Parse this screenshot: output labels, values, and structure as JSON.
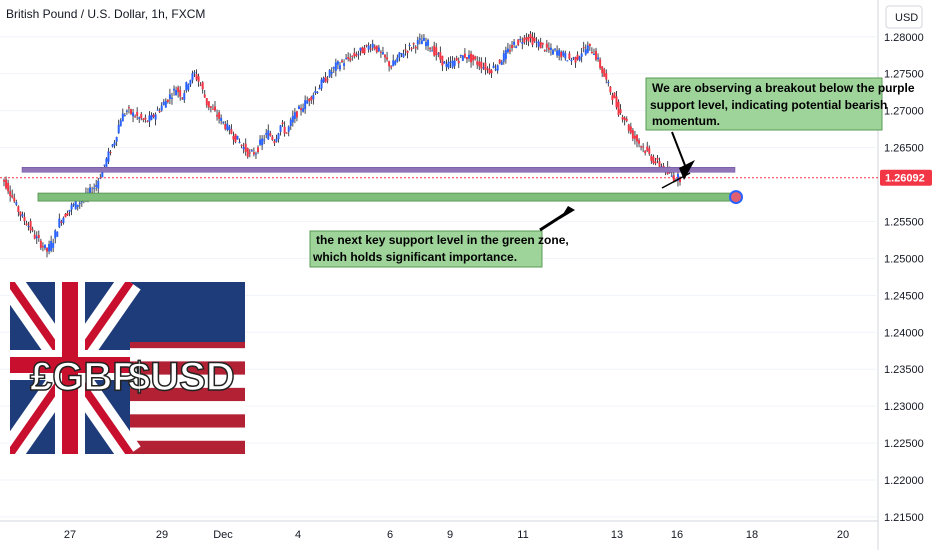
{
  "chart_data": {
    "type": "candlestick",
    "title": "British Pound / U.S. Dollar, 1h, FXCM",
    "currency": "USD",
    "ylim": [
      1.215,
      1.282
    ],
    "y_ticks": [
      "1.28000",
      "1.27500",
      "1.27000",
      "1.26500",
      "1.26092",
      "1.25500",
      "1.25000",
      "1.24500",
      "1.24000",
      "1.23500",
      "1.23000",
      "1.22500",
      "1.22000",
      "1.21500"
    ],
    "x_ticks": [
      "27",
      "29",
      "Dec",
      "4",
      "6",
      "9",
      "11",
      "13",
      "16",
      "18",
      "20"
    ],
    "last_price": {
      "label": "1.26092",
      "value": 1.26092,
      "color": "#f23645"
    },
    "series": [
      {
        "x_range": [
          0,
          1
        ],
        "y": [
          1.2605,
          1.259,
          1.257,
          1.2555,
          1.2545,
          1.253,
          1.252,
          1.251,
          1.2525,
          1.255,
          1.256,
          1.257,
          1.2575,
          1.258,
          1.259,
          1.26,
          1.262,
          1.264,
          1.266,
          1.269,
          1.27,
          1.2695,
          1.269,
          1.2685,
          1.269,
          1.27,
          1.271,
          1.272,
          1.273,
          1.272,
          1.274,
          1.275,
          1.2735,
          1.271,
          1.27,
          1.269,
          1.268,
          1.267,
          1.266,
          1.265,
          1.264,
          1.2645,
          1.266,
          1.267,
          1.266,
          1.268,
          1.267,
          1.269,
          1.27,
          1.271,
          1.272,
          1.273,
          1.274,
          1.275,
          1.276,
          1.2765,
          1.277,
          1.2775,
          1.278,
          1.2785,
          1.279,
          1.278,
          1.277,
          1.276,
          1.277,
          1.278,
          1.2785,
          1.279,
          1.2795,
          1.279,
          1.278,
          1.277,
          1.276,
          1.2765,
          1.277,
          1.2775,
          1.277,
          1.2765,
          1.276,
          1.2755,
          1.276,
          1.277,
          1.278,
          1.279,
          1.2795,
          1.28,
          1.2795,
          1.279,
          1.2785,
          1.278,
          1.278,
          1.2775,
          1.277,
          1.277,
          1.278,
          1.2785,
          1.278,
          1.276,
          1.274,
          1.272,
          1.27,
          1.269,
          1.267,
          1.266,
          1.265,
          1.264,
          1.263,
          1.2625,
          1.2615,
          1.261,
          1.2609
        ]
      }
    ],
    "levels": [
      {
        "name": "purple-support",
        "value": 1.262,
        "color": "#8f74b8"
      },
      {
        "name": "green-support",
        "value": 1.2583,
        "color": "#7fbf7b"
      }
    ],
    "annotations": [
      {
        "text": [
          "We are observing a breakout below the purple",
          "support level, indicating potential bearish",
          "momentum."
        ],
        "bg": "#9ed39a"
      },
      {
        "text": [
          "the next key support level in the green zone,",
          "which holds significant importance."
        ],
        "bg": "#9ed39a"
      }
    ],
    "overlay_image": {
      "labels": [
        "£GBP",
        "$USD"
      ]
    },
    "colors": {
      "up": "#2962ff",
      "down": "#f23645",
      "wick": "#131722",
      "grid": "#f0f3fa"
    }
  }
}
